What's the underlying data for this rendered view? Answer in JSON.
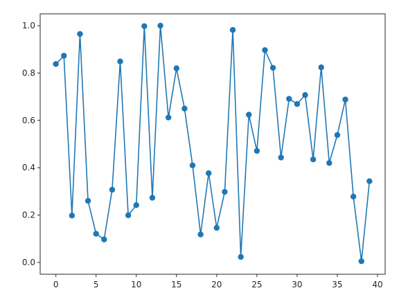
{
  "chart_data": {
    "type": "line",
    "title": "",
    "xlabel": "",
    "ylabel": "",
    "xlim": [
      -1.95,
      40.95
    ],
    "ylim": [
      -0.05,
      1.05
    ],
    "xticks": [
      0,
      5,
      10,
      15,
      20,
      25,
      30,
      35,
      40
    ],
    "xtick_labels": [
      "0",
      "5",
      "10",
      "15",
      "20",
      "25",
      "30",
      "35",
      "40"
    ],
    "yticks": [
      0.0,
      0.2,
      0.4,
      0.6,
      0.8,
      1.0
    ],
    "ytick_labels": [
      "0.0",
      "0.2",
      "0.4",
      "0.6",
      "0.8",
      "1.0"
    ],
    "grid": false,
    "legend": "none",
    "series": [
      {
        "color": "#1f77b4",
        "marker": "circle",
        "x": [
          0,
          1,
          2,
          3,
          4,
          5,
          6,
          7,
          8,
          9,
          10,
          11,
          12,
          13,
          14,
          15,
          16,
          17,
          18,
          19,
          20,
          21,
          22,
          23,
          24,
          25,
          26,
          27,
          28,
          29,
          30,
          31,
          32,
          33,
          34,
          35,
          36,
          37,
          38,
          39
        ],
        "values": [
          0.838,
          0.873,
          0.198,
          0.965,
          0.26,
          0.121,
          0.097,
          0.307,
          0.849,
          0.199,
          0.242,
          0.998,
          0.273,
          1.0,
          0.612,
          0.82,
          0.65,
          0.41,
          0.118,
          0.377,
          0.146,
          0.298,
          0.982,
          0.023,
          0.624,
          0.471,
          0.897,
          0.822,
          0.443,
          0.691,
          0.669,
          0.707,
          0.435,
          0.824,
          0.42,
          0.538,
          0.688,
          0.278,
          0.005,
          0.343
        ]
      }
    ]
  }
}
